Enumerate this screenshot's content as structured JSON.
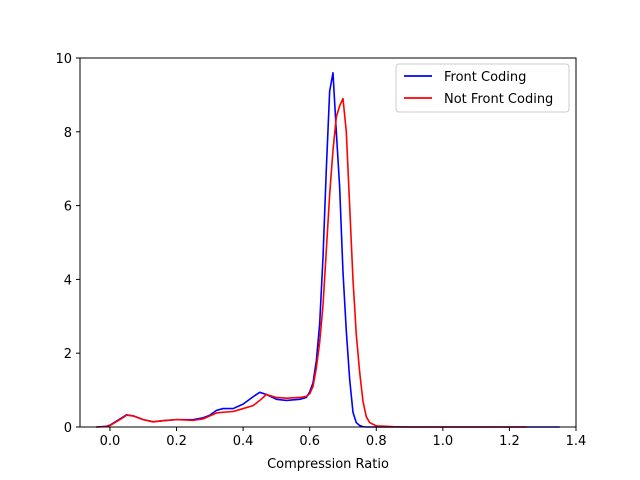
{
  "chart_data": {
    "type": "line",
    "title": "",
    "xlabel": "Compression Ratio",
    "ylabel": "",
    "xlim": [
      -0.09,
      1.4
    ],
    "ylim": [
      0,
      10
    ],
    "xticks": [
      0.0,
      0.2,
      0.4,
      0.6,
      0.8,
      1.0,
      1.2,
      1.4
    ],
    "xtick_labels": [
      "0.0",
      "0.2",
      "0.4",
      "0.6",
      "0.8",
      "1.0",
      "1.2",
      "1.4"
    ],
    "yticks": [
      0,
      2,
      4,
      6,
      8,
      10
    ],
    "ytick_labels": [
      "0",
      "2",
      "4",
      "6",
      "8",
      "10"
    ],
    "grid": false,
    "legend_position": "top-right",
    "series": [
      {
        "name": "Front Coding",
        "color": "#0000ff",
        "x": [
          -0.04,
          -0.01,
          0.0,
          0.03,
          0.05,
          0.07,
          0.1,
          0.13,
          0.16,
          0.2,
          0.25,
          0.28,
          0.3,
          0.32,
          0.34,
          0.37,
          0.4,
          0.43,
          0.45,
          0.47,
          0.5,
          0.53,
          0.57,
          0.59,
          0.6,
          0.61,
          0.62,
          0.63,
          0.64,
          0.65,
          0.66,
          0.67,
          0.68,
          0.69,
          0.7,
          0.71,
          0.72,
          0.73,
          0.74,
          0.75,
          0.76,
          0.77,
          0.78,
          0.8,
          0.85,
          0.9,
          1.0,
          1.1,
          1.2,
          1.3,
          1.35
        ],
        "y": [
          0.0,
          0.02,
          0.05,
          0.22,
          0.33,
          0.3,
          0.2,
          0.14,
          0.17,
          0.2,
          0.2,
          0.25,
          0.32,
          0.45,
          0.5,
          0.5,
          0.62,
          0.82,
          0.94,
          0.88,
          0.75,
          0.72,
          0.75,
          0.8,
          0.95,
          1.2,
          1.8,
          2.8,
          4.6,
          7.0,
          9.1,
          9.6,
          8.0,
          6.5,
          4.2,
          2.6,
          1.3,
          0.4,
          0.12,
          0.04,
          0.01,
          0.0,
          0.0,
          0.0,
          0.0,
          0.0,
          0.0,
          0.0,
          0.0,
          0.0,
          0.0
        ]
      },
      {
        "name": "Not Front Coding",
        "color": "#ff0000",
        "x": [
          -0.04,
          -0.01,
          0.0,
          0.03,
          0.05,
          0.07,
          0.1,
          0.13,
          0.16,
          0.2,
          0.25,
          0.28,
          0.3,
          0.32,
          0.34,
          0.37,
          0.4,
          0.43,
          0.45,
          0.47,
          0.5,
          0.53,
          0.57,
          0.59,
          0.6,
          0.61,
          0.62,
          0.63,
          0.64,
          0.65,
          0.66,
          0.67,
          0.68,
          0.69,
          0.7,
          0.71,
          0.72,
          0.73,
          0.74,
          0.75,
          0.76,
          0.77,
          0.78,
          0.8,
          0.85,
          0.9,
          1.0,
          1.1,
          1.2,
          1.25
        ],
        "y": [
          0.0,
          0.01,
          0.04,
          0.2,
          0.32,
          0.3,
          0.2,
          0.14,
          0.17,
          0.2,
          0.18,
          0.22,
          0.3,
          0.38,
          0.4,
          0.42,
          0.5,
          0.58,
          0.72,
          0.88,
          0.8,
          0.78,
          0.8,
          0.83,
          0.9,
          1.1,
          1.6,
          2.3,
          3.3,
          4.8,
          6.3,
          7.5,
          8.4,
          8.7,
          8.9,
          8.0,
          6.0,
          4.0,
          2.5,
          1.5,
          0.7,
          0.28,
          0.12,
          0.03,
          0.01,
          0.0,
          0.0,
          0.0,
          0.0,
          0.0
        ]
      }
    ]
  }
}
